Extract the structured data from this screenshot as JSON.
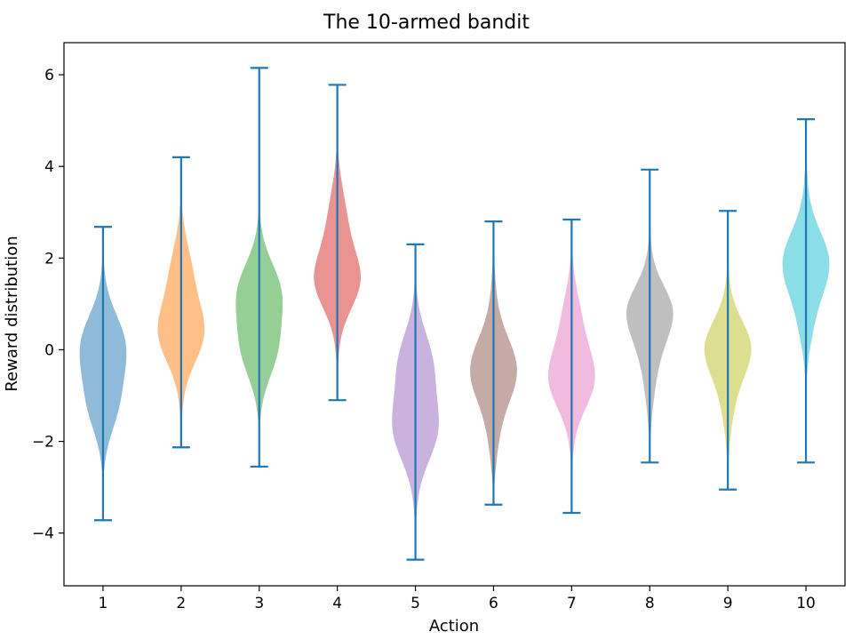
{
  "chart_data": {
    "type": "violin",
    "title": "The 10-armed bandit",
    "xlabel": "Action",
    "ylabel": "Reward distribution",
    "ylim": [
      -5.15,
      6.7
    ],
    "yticks": [
      -4,
      -2,
      0,
      2,
      4,
      6
    ],
    "ytick_labels": [
      "−4",
      "−2",
      "0",
      "2",
      "4",
      "6"
    ],
    "categories": [
      "1",
      "2",
      "3",
      "4",
      "5",
      "6",
      "7",
      "8",
      "9",
      "10"
    ],
    "grid": false,
    "line_color": "#1f77b4",
    "violins": [
      {
        "action": "1",
        "mean": -0.45,
        "min": -3.72,
        "max": 2.68,
        "kde_low": -2.7,
        "kde_high": 2.0,
        "color": "#1f77b4"
      },
      {
        "action": "2",
        "mean": 0.75,
        "min": -2.13,
        "max": 4.2,
        "kde_low": -1.6,
        "kde_high": 3.2,
        "color": "#ff7f0e"
      },
      {
        "action": "3",
        "mean": 0.7,
        "min": -2.55,
        "max": 6.15,
        "kde_low": -1.6,
        "kde_high": 3.0,
        "color": "#2ca02c"
      },
      {
        "action": "4",
        "mean": 1.8,
        "min": -1.1,
        "max": 5.78,
        "kde_low": -0.4,
        "kde_high": 4.4,
        "color": "#d62728"
      },
      {
        "action": "5",
        "mean": -1.1,
        "min": -4.58,
        "max": 2.3,
        "kde_low": -3.8,
        "kde_high": 1.5,
        "color": "#9467bd"
      },
      {
        "action": "6",
        "mean": -0.6,
        "min": -3.38,
        "max": 2.8,
        "kde_low": -3.0,
        "kde_high": 2.0,
        "color": "#8c564b"
      },
      {
        "action": "7",
        "mean": -0.3,
        "min": -3.56,
        "max": 2.84,
        "kde_low": -2.6,
        "kde_high": 2.1,
        "color": "#e377c2"
      },
      {
        "action": "8",
        "mean": 0.7,
        "min": -2.46,
        "max": 3.93,
        "kde_low": -1.9,
        "kde_high": 2.6,
        "color": "#7f7f7f"
      },
      {
        "action": "9",
        "mean": -0.1,
        "min": -3.05,
        "max": 3.03,
        "kde_low": -2.4,
        "kde_high": 1.9,
        "color": "#bcbd22"
      },
      {
        "action": "10",
        "mean": 1.6,
        "min": -2.46,
        "max": 5.03,
        "kde_low": -0.6,
        "kde_high": 4.1,
        "color": "#17becf"
      }
    ]
  }
}
